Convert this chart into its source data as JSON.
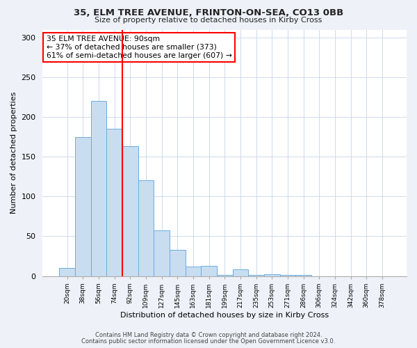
{
  "title": "35, ELM TREE AVENUE, FRINTON-ON-SEA, CO13 0BB",
  "subtitle": "Size of property relative to detached houses in Kirby Cross",
  "xlabel": "Distribution of detached houses by size in Kirby Cross",
  "ylabel": "Number of detached properties",
  "categories": [
    "20sqm",
    "38sqm",
    "56sqm",
    "74sqm",
    "92sqm",
    "109sqm",
    "127sqm",
    "145sqm",
    "163sqm",
    "181sqm",
    "199sqm",
    "217sqm",
    "235sqm",
    "253sqm",
    "271sqm",
    "286sqm",
    "306sqm",
    "324sqm",
    "342sqm",
    "360sqm",
    "378sqm"
  ],
  "bar_heights": [
    10,
    175,
    220,
    185,
    163,
    120,
    57,
    33,
    12,
    13,
    1,
    8,
    1,
    2,
    1,
    1,
    0,
    0,
    0,
    0,
    0
  ],
  "bar_color": "#c8ddf0",
  "bar_edge_color": "#6aaee0",
  "marker_color": "red",
  "annotation_text": "35 ELM TREE AVENUE: 90sqm\n← 37% of detached houses are smaller (373)\n61% of semi-detached houses are larger (607) →",
  "ylim": [
    0,
    310
  ],
  "yticks": [
    0,
    50,
    100,
    150,
    200,
    250,
    300
  ],
  "footer1": "Contains HM Land Registry data © Crown copyright and database right 2024.",
  "footer2": "Contains public sector information licensed under the Open Government Licence v3.0.",
  "bg_color": "#eef2f8",
  "plot_bg_color": "#ffffff"
}
